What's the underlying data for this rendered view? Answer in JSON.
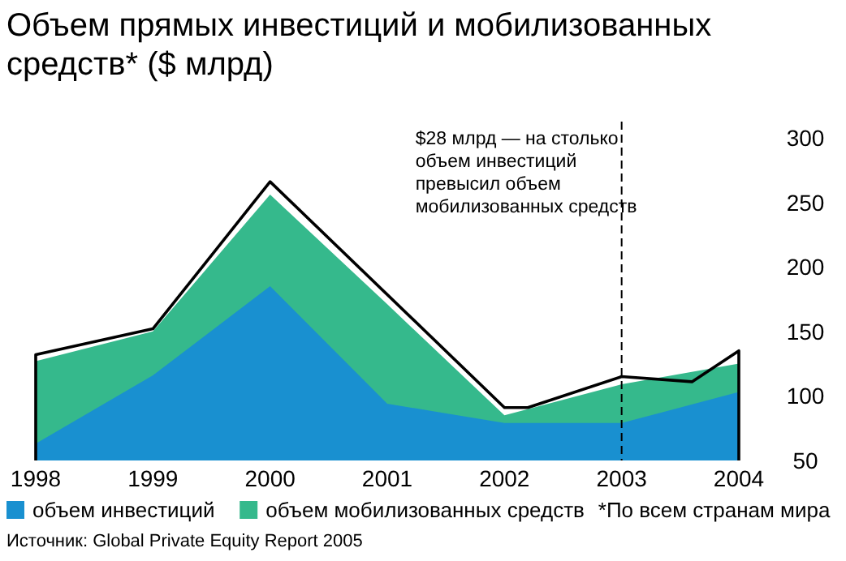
{
  "chart_data": {
    "type": "area",
    "title": "Объем прямых инвестиций и мобилизованных средств* ($ млрд)",
    "x": [
      1998,
      1999,
      2000,
      2001,
      2002,
      2003,
      2004
    ],
    "xlim": [
      1998,
      2004
    ],
    "xticks": [
      1998,
      1999,
      2000,
      2001,
      2002,
      2003,
      2004
    ],
    "ylim": [
      50,
      300
    ],
    "yticks": [
      50,
      100,
      150,
      200,
      250,
      300
    ],
    "series": [
      {
        "name": "объем мобилизованных средств",
        "color": "#35b98c",
        "values": [
          127,
          150,
          256,
          171,
          85,
          109,
          125
        ]
      },
      {
        "name": "объем инвестиций",
        "color": "#1990d0",
        "values": [
          63,
          116,
          185,
          94,
          79,
          79,
          103
        ]
      },
      {
        "type": "line",
        "color": "#000000",
        "x": [
          1998,
          1998,
          1999,
          2000,
          2002,
          2002.2,
          2003,
          2003.6,
          2004,
          2004
        ],
        "values": [
          50,
          132,
          152,
          266,
          91,
          91,
          115,
          111,
          135,
          50
        ]
      }
    ],
    "legend": "bottom",
    "ref_lines": [
      {
        "axis": "x",
        "value": 2003,
        "line_style": "dashed",
        "color": "#000000",
        "label": "$28 млрд — на столько объем инвестиций превысил объем мобилизованных средств"
      }
    ],
    "annotations": [
      "*По всем странам мира",
      "Источник: Global Private Equity Report 2005"
    ]
  }
}
